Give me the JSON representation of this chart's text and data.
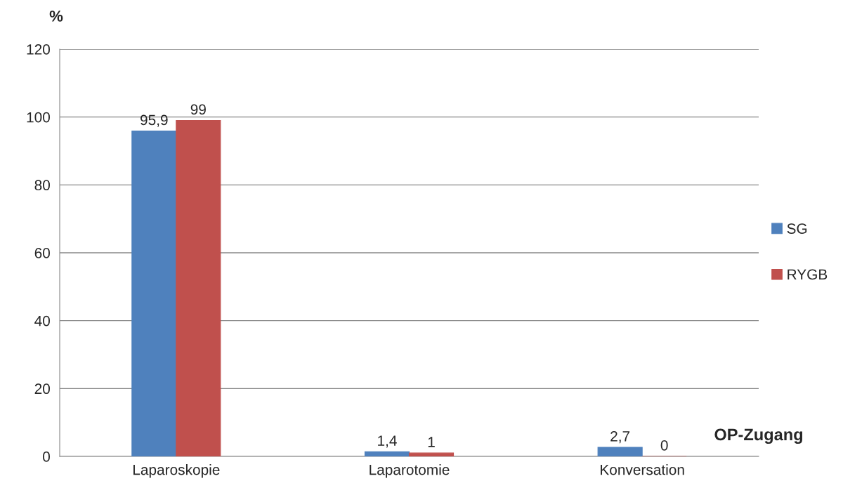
{
  "chart_data": {
    "type": "bar",
    "ylabel": "%",
    "xlabel": "OP-Zugang",
    "categories": [
      "Laparoskopie",
      "Laparotomie",
      "Konversation"
    ],
    "series": [
      {
        "name": "SG",
        "color": "#4f81bd",
        "values": [
          95.9,
          1.4,
          2.7
        ],
        "value_labels": [
          "95,9",
          "1,4",
          "2,7"
        ]
      },
      {
        "name": "RYGB",
        "color": "#c0504d",
        "values": [
          99,
          1,
          0
        ],
        "value_labels": [
          "99",
          "1",
          "0"
        ]
      }
    ],
    "ylim": [
      0,
      120
    ],
    "yticks": [
      0,
      20,
      40,
      60,
      80,
      100,
      120
    ],
    "grid": "y",
    "legend": "right"
  }
}
